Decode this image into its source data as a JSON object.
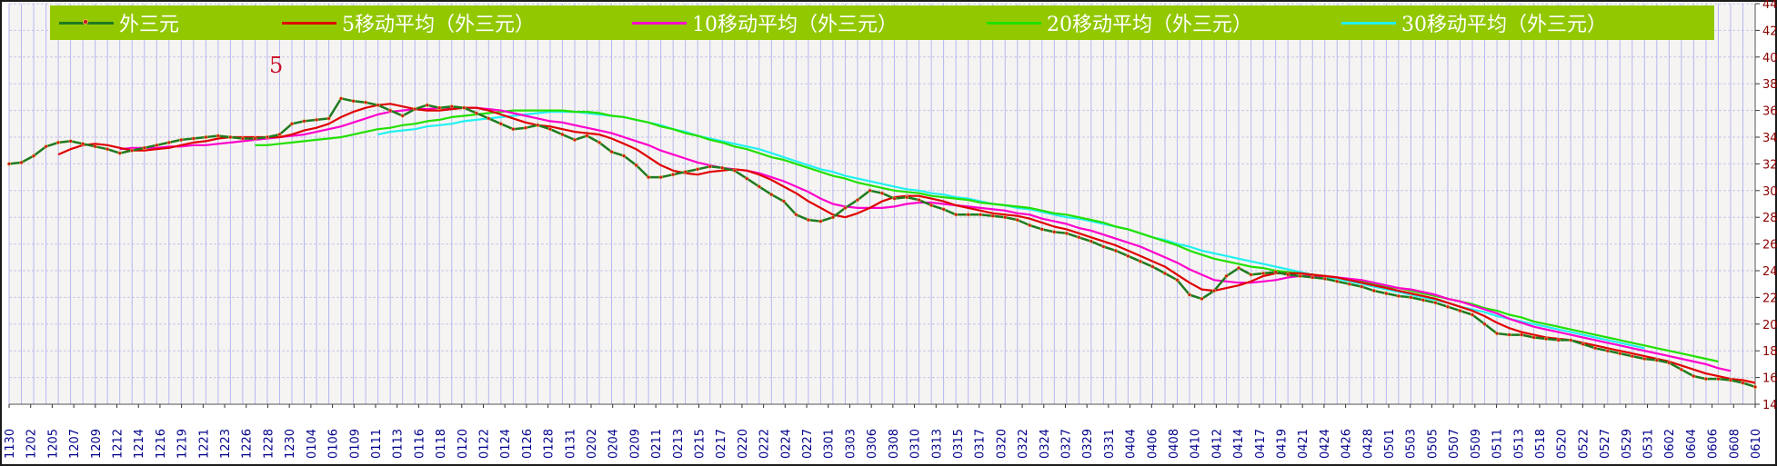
{
  "chart_data": {
    "type": "line",
    "title": "外三元",
    "marker_label": "5",
    "colors": {
      "price": "#1f7a1f",
      "price_marker": "#c8102e",
      "ma5": "#e00000",
      "ma10": "#ff00cc",
      "ma20": "#22e000",
      "ma30": "#22f0f0",
      "axis_text": "#8b0000",
      "date_text": "#00008b",
      "legend_bg": "#92c800",
      "vgrid": "#b6b6f0",
      "hgrid": "#c6c6e8"
    },
    "ylim": [
      14,
      44
    ],
    "y_ticks": [
      "14",
      "16",
      "18",
      "20",
      "22",
      "24",
      "26",
      "28",
      "30",
      "32",
      "34",
      "36",
      "38",
      "40",
      "42",
      "44"
    ],
    "x_tick_labels": [
      "1130",
      "1202",
      "1205",
      "1207",
      "1209",
      "1212",
      "1214",
      "1216",
      "1219",
      "1221",
      "1223",
      "1226",
      "1228",
      "1230",
      "0104",
      "0106",
      "0109",
      "0111",
      "0113",
      "0116",
      "0118",
      "0120",
      "0122",
      "0124",
      "0126",
      "0128",
      "0131",
      "0202",
      "0204",
      "0209",
      "0211",
      "0213",
      "0215",
      "0217",
      "0220",
      "0222",
      "0224",
      "0227",
      "0301",
      "0303",
      "0306",
      "0308",
      "0310",
      "0313",
      "0315",
      "0317",
      "0320",
      "0322",
      "0324",
      "0327",
      "0329",
      "0331",
      "0404",
      "0406",
      "0408",
      "0410",
      "0412",
      "0414",
      "0417",
      "0419",
      "0421",
      "0424",
      "0426",
      "0428",
      "0501",
      "0503",
      "0505",
      "0507",
      "0509",
      "0511",
      "0513",
      "0518",
      "0520",
      "0522",
      "0527",
      "0529",
      "0531",
      "0602",
      "0604",
      "0606",
      "0608",
      "0610"
    ],
    "series": [
      {
        "name": "外三元",
        "key": "price",
        "values": [
          32.0,
          32.1,
          32.6,
          33.3,
          33.6,
          33.7,
          33.5,
          33.3,
          33.1,
          32.8,
          33.0,
          33.2,
          33.4,
          33.6,
          33.8,
          33.9,
          34.0,
          34.1,
          34.0,
          33.9,
          33.9,
          34.0,
          34.2,
          35.0,
          35.2,
          35.3,
          35.4,
          36.9,
          36.7,
          36.6,
          36.4,
          36.0,
          35.6,
          36.1,
          36.4,
          36.2,
          36.3,
          36.2,
          35.8,
          35.4,
          35.0,
          34.6,
          34.7,
          34.9,
          34.6,
          34.2,
          33.8,
          34.1,
          33.6,
          32.9,
          32.6,
          31.9,
          31.0,
          31.0,
          31.2,
          31.4,
          31.6,
          31.8,
          31.7,
          31.5,
          30.9,
          30.3,
          29.7,
          29.2,
          28.2,
          27.8,
          27.7,
          28.0,
          28.7,
          29.3,
          30.0,
          29.8,
          29.4,
          29.5,
          29.3,
          28.9,
          28.6,
          28.2,
          28.2,
          28.2,
          28.1,
          28.0,
          27.8,
          27.4,
          27.1,
          26.9,
          26.8,
          26.5,
          26.2,
          25.8,
          25.5,
          25.1,
          24.7,
          24.3,
          23.8,
          23.3,
          22.2,
          21.9,
          22.5,
          23.6,
          24.2,
          23.7,
          23.8,
          23.9,
          23.7,
          23.6,
          23.5,
          23.4,
          23.2,
          23.0,
          22.8,
          22.5,
          22.3,
          22.1,
          22.0,
          21.8,
          21.6,
          21.3,
          21.0,
          20.7,
          20.0,
          19.3,
          19.2,
          19.2,
          19.0,
          18.9,
          18.8,
          18.8,
          18.5,
          18.2,
          18.0,
          17.8,
          17.6,
          17.4,
          17.3,
          17.1,
          16.6,
          16.1,
          15.9,
          15.9,
          15.8,
          15.6,
          15.3
        ]
      },
      {
        "name": "5移动平均（外三元）",
        "key": "ma5",
        "values": [
          null,
          null,
          null,
          null,
          32.7,
          33.1,
          33.4,
          33.5,
          33.4,
          33.2,
          33.0,
          33.0,
          33.1,
          33.2,
          33.4,
          33.6,
          33.7,
          33.9,
          34.0,
          34.0,
          34.0,
          34.0,
          34.0,
          34.2,
          34.5,
          34.7,
          35.0,
          35.5,
          35.9,
          36.2,
          36.4,
          36.5,
          36.3,
          36.1,
          36.0,
          36.0,
          36.1,
          36.2,
          36.2,
          36.0,
          35.7,
          35.4,
          35.1,
          34.9,
          34.8,
          34.6,
          34.4,
          34.3,
          34.2,
          33.9,
          33.5,
          33.1,
          32.5,
          31.9,
          31.5,
          31.3,
          31.2,
          31.4,
          31.5,
          31.6,
          31.5,
          31.2,
          30.8,
          30.3,
          29.8,
          29.2,
          28.7,
          28.2,
          28.0,
          28.3,
          28.7,
          29.2,
          29.5,
          29.6,
          29.6,
          29.4,
          29.2,
          28.9,
          28.7,
          28.5,
          28.3,
          28.2,
          28.1,
          27.9,
          27.6,
          27.3,
          27.1,
          26.8,
          26.5,
          26.2,
          25.9,
          25.5,
          25.1,
          24.7,
          24.3,
          23.7,
          23.1,
          22.6,
          22.5,
          22.7,
          22.9,
          23.2,
          23.6,
          23.8,
          23.8,
          23.8,
          23.7,
          23.6,
          23.5,
          23.3,
          23.1,
          22.9,
          22.7,
          22.5,
          22.3,
          22.1,
          21.9,
          21.6,
          21.3,
          21.0,
          20.6,
          20.1,
          19.7,
          19.4,
          19.2,
          19.0,
          18.9,
          18.8,
          18.6,
          18.4,
          18.2,
          18.0,
          17.8,
          17.6,
          17.4,
          17.2,
          16.9,
          16.6,
          16.3,
          16.1,
          15.9,
          15.8,
          15.6
        ]
      },
      {
        "name": "10移动平均（外三元）",
        "key": "ma10",
        "values": [
          null,
          null,
          null,
          null,
          null,
          null,
          null,
          null,
          null,
          33.1,
          33.2,
          33.2,
          33.2,
          33.3,
          33.3,
          33.4,
          33.4,
          33.5,
          33.6,
          33.7,
          33.8,
          33.9,
          34.0,
          34.1,
          34.2,
          34.4,
          34.6,
          34.8,
          35.1,
          35.4,
          35.7,
          35.9,
          36.0,
          36.1,
          36.1,
          36.2,
          36.2,
          36.2,
          36.2,
          36.1,
          36.0,
          35.8,
          35.6,
          35.4,
          35.2,
          35.1,
          34.9,
          34.7,
          34.5,
          34.3,
          34.0,
          33.7,
          33.4,
          33.0,
          32.7,
          32.4,
          32.1,
          31.9,
          31.7,
          31.6,
          31.5,
          31.3,
          31.0,
          30.7,
          30.3,
          29.9,
          29.4,
          29.0,
          28.8,
          28.7,
          28.7,
          28.7,
          28.8,
          29.0,
          29.1,
          29.1,
          29.0,
          28.9,
          28.8,
          28.7,
          28.6,
          28.5,
          28.3,
          28.2,
          27.9,
          27.7,
          27.5,
          27.2,
          27.0,
          26.7,
          26.4,
          26.1,
          25.8,
          25.4,
          25.0,
          24.6,
          24.1,
          23.7,
          23.3,
          23.2,
          23.1,
          23.1,
          23.2,
          23.3,
          23.5,
          23.6,
          23.6,
          23.6,
          23.5,
          23.4,
          23.3,
          23.1,
          22.9,
          22.7,
          22.6,
          22.4,
          22.2,
          21.9,
          21.7,
          21.4,
          21.1,
          20.8,
          20.4,
          20.1,
          19.8,
          19.6,
          19.4,
          19.2,
          19.0,
          18.8,
          18.6,
          18.4,
          18.2,
          18.0,
          17.8,
          17.6,
          17.4,
          17.2,
          17.0,
          16.7,
          16.5
        ]
      },
      {
        "name": "20移动平均（外三元）",
        "key": "ma20",
        "values": [
          null,
          null,
          null,
          null,
          null,
          null,
          null,
          null,
          null,
          null,
          null,
          null,
          null,
          null,
          null,
          null,
          null,
          null,
          null,
          null,
          33.4,
          33.4,
          33.5,
          33.6,
          33.7,
          33.8,
          33.9,
          34.0,
          34.2,
          34.4,
          34.6,
          34.7,
          34.9,
          35.0,
          35.2,
          35.3,
          35.5,
          35.6,
          35.7,
          35.8,
          35.9,
          36.0,
          36.0,
          36.0,
          36.0,
          36.0,
          35.9,
          35.9,
          35.8,
          35.6,
          35.5,
          35.3,
          35.1,
          34.8,
          34.6,
          34.3,
          34.1,
          33.8,
          33.6,
          33.3,
          33.1,
          32.8,
          32.5,
          32.3,
          32.0,
          31.7,
          31.4,
          31.1,
          30.9,
          30.6,
          30.4,
          30.2,
          30.0,
          29.9,
          29.8,
          29.6,
          29.5,
          29.4,
          29.3,
          29.1,
          29.0,
          28.9,
          28.8,
          28.7,
          28.5,
          28.3,
          28.2,
          28.0,
          27.8,
          27.6,
          27.3,
          27.1,
          26.8,
          26.5,
          26.2,
          25.9,
          25.5,
          25.2,
          24.9,
          24.7,
          24.5,
          24.3,
          24.2,
          24.0,
          23.9,
          23.8,
          23.7,
          23.6,
          23.5,
          23.3,
          23.2,
          23.0,
          22.8,
          22.7,
          22.5,
          22.3,
          22.1,
          21.9,
          21.7,
          21.5,
          21.2,
          21.0,
          20.7,
          20.5,
          20.2,
          20.0,
          19.8,
          19.6,
          19.4,
          19.2,
          19.0,
          18.8,
          18.6,
          18.4,
          18.2,
          18.0,
          17.8,
          17.6,
          17.4,
          17.2
        ]
      },
      {
        "name": "30移动平均（外三元）",
        "key": "ma30",
        "values": [
          null,
          null,
          null,
          null,
          null,
          null,
          null,
          null,
          null,
          null,
          null,
          null,
          null,
          null,
          null,
          null,
          null,
          null,
          null,
          null,
          null,
          null,
          null,
          null,
          null,
          null,
          null,
          null,
          null,
          null,
          34.2,
          34.4,
          34.5,
          34.6,
          34.8,
          34.9,
          35.0,
          35.2,
          35.3,
          35.4,
          35.5,
          35.6,
          35.7,
          35.8,
          35.9,
          35.9,
          35.9,
          35.8,
          35.7,
          35.6,
          35.5,
          35.3,
          35.1,
          34.9,
          34.6,
          34.4,
          34.1,
          33.9,
          33.7,
          33.5,
          33.3,
          33.1,
          32.8,
          32.5,
          32.2,
          31.9,
          31.6,
          31.4,
          31.1,
          30.9,
          30.7,
          30.5,
          30.3,
          30.1,
          30.0,
          29.8,
          29.7,
          29.5,
          29.4,
          29.2,
          29.0,
          28.9,
          28.7,
          28.6,
          28.4,
          28.2,
          28.0,
          27.9,
          27.7,
          27.5,
          27.3,
          27.1,
          26.8,
          26.5,
          26.3,
          26.0,
          25.8,
          25.5,
          25.3,
          25.1,
          24.9,
          24.7,
          24.5,
          24.3,
          24.1,
          23.9,
          23.7,
          23.5,
          23.4,
          23.2,
          23.0,
          22.8,
          22.6,
          22.4,
          22.2,
          22.0,
          21.8,
          21.6,
          21.3,
          21.1,
          20.9,
          20.6,
          20.4,
          20.2,
          20.0,
          19.8,
          19.6,
          19.4,
          19.2,
          19.0,
          18.8,
          18.6,
          18.4,
          18.2
        ]
      }
    ],
    "legend": [
      {
        "key": "price",
        "label": "外三元"
      },
      {
        "key": "ma5",
        "label": "5移动平均（外三元）"
      },
      {
        "key": "ma10",
        "label": "10移动平均（外三元）"
      },
      {
        "key": "ma20",
        "label": "20移动平均（外三元）"
      },
      {
        "key": "ma30",
        "label": "30移动平均（外三元）"
      }
    ]
  }
}
